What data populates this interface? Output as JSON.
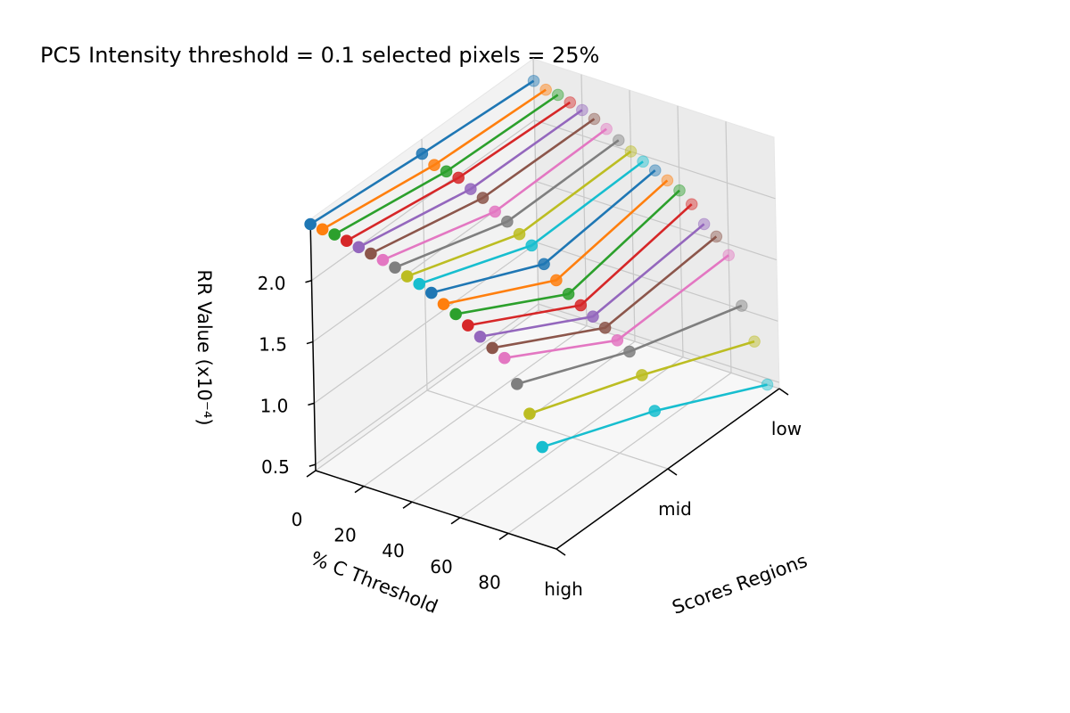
{
  "chart_data": {
    "type": "line",
    "projection": "3d",
    "title": "PC5 Intensity threshold = 0.1 selected pixels = 25%",
    "xlabel": "% C Threshold",
    "ylabel": "Scores Regions",
    "zlabel": "RR Value (x10⁻⁴)",
    "x_ticks": [
      "0",
      "20",
      "40",
      "60",
      "80"
    ],
    "y_categories": [
      "high",
      "mid",
      "low"
    ],
    "z_ticks": [
      "0.5",
      "1.0",
      "1.5",
      "2.0"
    ],
    "zlim": [
      0.45,
      2.5
    ],
    "grid": true,
    "series": [
      {
        "x": 0,
        "color": "#1f77b4",
        "values": [
          2.46,
          2.38,
          2.32
        ]
      },
      {
        "x": 5,
        "color": "#ff7f0e",
        "values": [
          2.45,
          2.32,
          2.28
        ]
      },
      {
        "x": 10,
        "color": "#2ca02c",
        "values": [
          2.44,
          2.3,
          2.27
        ]
      },
      {
        "x": 15,
        "color": "#d62728",
        "values": [
          2.42,
          2.28,
          2.24
        ]
      },
      {
        "x": 20,
        "color": "#9467bd",
        "values": [
          2.4,
          2.22,
          2.21
        ]
      },
      {
        "x": 25,
        "color": "#8c564b",
        "values": [
          2.38,
          2.18,
          2.17
        ]
      },
      {
        "x": 30,
        "color": "#e377c2",
        "values": [
          2.36,
          2.1,
          2.12
        ]
      },
      {
        "x": 35,
        "color": "#7f7f7f",
        "values": [
          2.33,
          2.05,
          2.06
        ]
      },
      {
        "x": 40,
        "color": "#bcbd22",
        "values": [
          2.29,
          1.98,
          2.0
        ]
      },
      {
        "x": 45,
        "color": "#17becf",
        "values": [
          2.26,
          1.92,
          1.95
        ]
      },
      {
        "x": 50,
        "color": "#1f77b4",
        "values": [
          2.22,
          1.8,
          1.91
        ]
      },
      {
        "x": 55,
        "color": "#ff7f0e",
        "values": [
          2.16,
          1.7,
          1.86
        ]
      },
      {
        "x": 60,
        "color": "#2ca02c",
        "values": [
          2.11,
          1.62,
          1.81
        ]
      },
      {
        "x": 65,
        "color": "#d62728",
        "values": [
          2.05,
          1.56,
          1.73
        ]
      },
      {
        "x": 70,
        "color": "#9467bd",
        "values": [
          1.99,
          1.5,
          1.6
        ]
      },
      {
        "x": 75,
        "color": "#8c564b",
        "values": [
          1.93,
          1.44,
          1.53
        ]
      },
      {
        "x": 80,
        "color": "#e377c2",
        "values": [
          1.88,
          1.37,
          1.41
        ]
      },
      {
        "x": 85,
        "color": "#7f7f7f",
        "values": [
          1.7,
          1.31,
          1.03
        ]
      },
      {
        "x": 90,
        "color": "#bcbd22",
        "values": [
          1.49,
          1.15,
          0.77
        ]
      },
      {
        "x": 95,
        "color": "#17becf",
        "values": [
          1.25,
          0.89,
          0.45
        ]
      }
    ]
  }
}
